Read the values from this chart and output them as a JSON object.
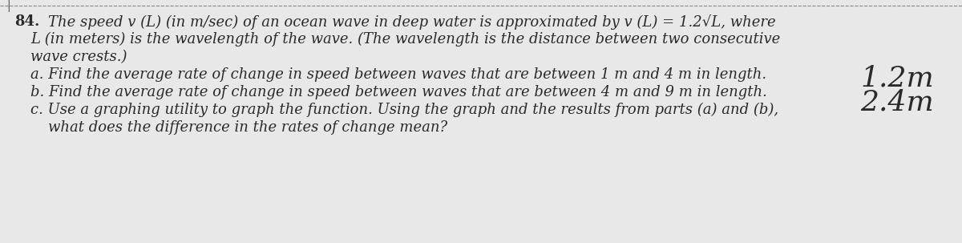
{
  "background_color": "#e8e8e8",
  "text_color": "#2a2a2a",
  "number_label": "84.",
  "intro_line1": "The speed v (L) (in m/sec) of an ocean wave in deep water is approximated by v (L) = 1.2√L, where",
  "intro_line2": "L (in meters) is the wavelength of the wave. (The wavelength is the distance between two consecutive",
  "intro_line3": "wave crests.)",
  "part_a_text": "a. Find the average rate of change in speed between waves that are between 1 m and 4 m in length.",
  "part_a_answer": "1.2m",
  "part_b_text": "b. Find the average rate of change in speed between waves that are between 4 m and 9 m in length.",
  "part_b_answer": "2.4m",
  "part_c_line1": "c. Use a graphing utility to graph the function. Using the graph and the results from parts (a) and (b),",
  "part_c_line2": "    what does the difference in the rates of change mean?",
  "main_fontsize": 13.0,
  "answer_fontsize": 26,
  "figwidth": 12.0,
  "figheight": 3.03,
  "dpi": 100
}
